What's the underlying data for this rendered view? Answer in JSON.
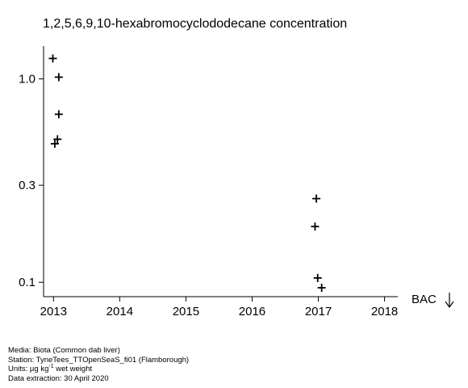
{
  "chart_data": {
    "type": "scatter",
    "title": "1,2,5,6,9,10-hexabromocyclododecane concentration",
    "xlabel": "",
    "ylabel": "",
    "y_scale": "log",
    "xlim": [
      2012.85,
      2018.2
    ],
    "ylim": [
      0.085,
      1.45
    ],
    "x_ticks": [
      2013,
      2014,
      2015,
      2016,
      2017,
      2018
    ],
    "x_tick_labels": [
      "2013",
      "2014",
      "2015",
      "2016",
      "2017",
      "2018"
    ],
    "y_ticks": [
      0.1,
      0.3,
      1.0
    ],
    "y_tick_labels": [
      "0.1",
      "0.3",
      "1.0"
    ],
    "marker": "plus",
    "points": [
      {
        "x": 2012.99,
        "y": 1.26
      },
      {
        "x": 2013.08,
        "y": 1.02
      },
      {
        "x": 2013.08,
        "y": 0.67
      },
      {
        "x": 2013.06,
        "y": 0.505
      },
      {
        "x": 2013.02,
        "y": 0.48
      },
      {
        "x": 2016.97,
        "y": 0.258
      },
      {
        "x": 2016.95,
        "y": 0.188
      },
      {
        "x": 2016.99,
        "y": 0.105
      },
      {
        "x": 2017.05,
        "y": 0.094
      }
    ],
    "annotation": {
      "label": "BAC",
      "symbol": "down-arrow"
    }
  },
  "footer": {
    "media": "Media: Biota (Common dab liver)",
    "station": "Station: TyneTees_TTOpenSeaS_fi01 (Flamborough)",
    "units_prefix": "Units:  µg kg",
    "units_sup": "-1",
    "units_suffix": " wet weight",
    "extraction": "Data extraction: 30 April 2020"
  }
}
